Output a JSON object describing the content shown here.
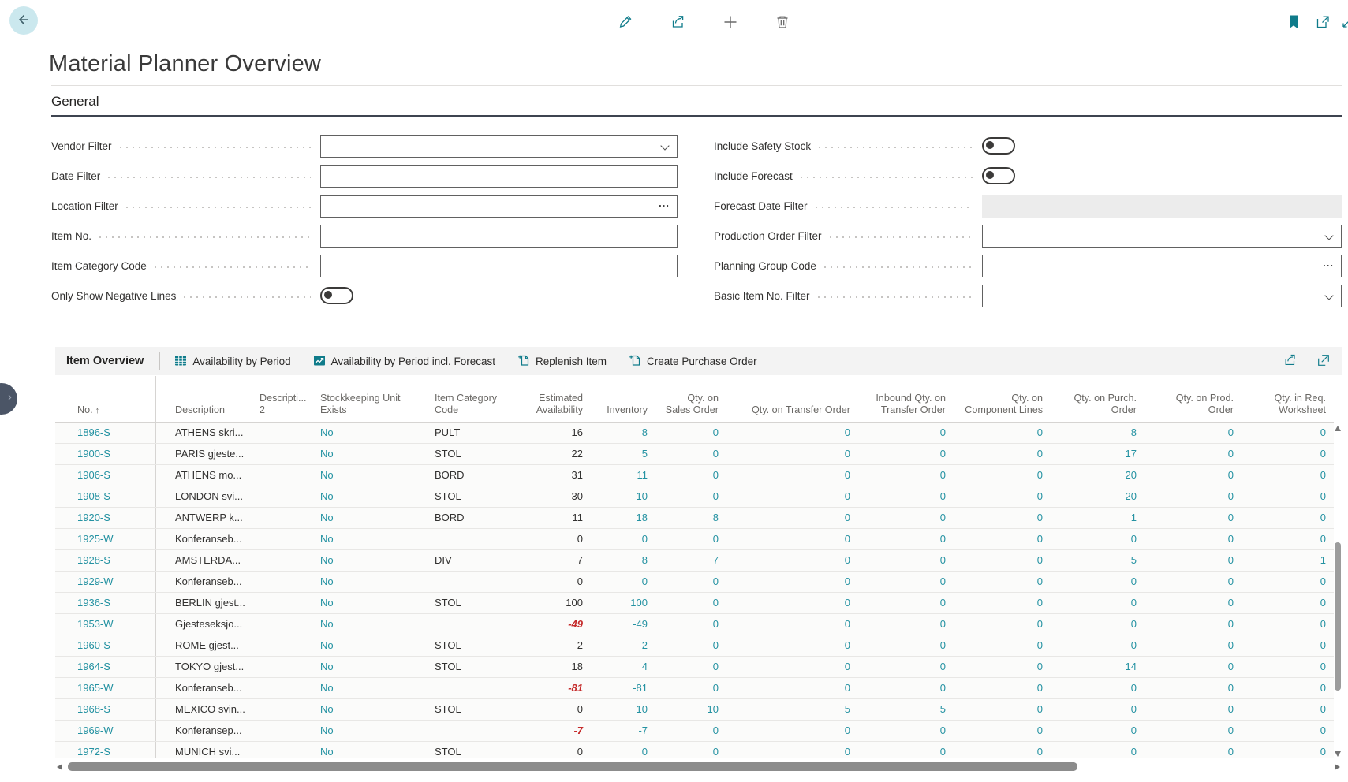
{
  "app": {
    "title": "Material Planner Overview",
    "top_actions": {
      "edit": "Edit",
      "share": "Share",
      "new": "New",
      "delete": "Delete"
    },
    "window_actions": {
      "bookmark": "Bookmark",
      "popout": "Open in new window",
      "resize": "Resize window"
    }
  },
  "colors": {
    "accent_teal": "#0f7b8a",
    "link_teal": "#2492a2",
    "negative_red": "#c52a2a",
    "toolbar_gray": "#f3f3f3"
  },
  "general": {
    "heading": "General",
    "left_fields": [
      {
        "label": "Vendor Filter",
        "control": "combo",
        "value": ""
      },
      {
        "label": "Date Filter",
        "control": "text",
        "value": ""
      },
      {
        "label": "Location Filter",
        "control": "assist",
        "value": "",
        "assist_glyph": "..."
      },
      {
        "label": "Item No.",
        "control": "text",
        "value": ""
      },
      {
        "label": "Item Category Code",
        "control": "text",
        "value": ""
      },
      {
        "label": "Only Show Negative Lines",
        "control": "toggle",
        "state": "off"
      }
    ],
    "right_fields": [
      {
        "label": "Include Safety Stock",
        "control": "toggle",
        "state": "off"
      },
      {
        "label": "Include Forecast",
        "control": "toggle",
        "state": "off"
      },
      {
        "label": "Forecast Date Filter",
        "control": "disabled",
        "value": ""
      },
      {
        "label": "Production Order Filter",
        "control": "combo",
        "value": ""
      },
      {
        "label": "Planning Group Code",
        "control": "assist",
        "value": "",
        "assist_glyph": "..."
      },
      {
        "label": "Basic Item No. Filter",
        "control": "combo",
        "value": ""
      }
    ]
  },
  "grid": {
    "title": "Item Overview",
    "actions": [
      {
        "label": "Availability by Period",
        "icon": "calendar-grid-icon"
      },
      {
        "label": "Availability by Period incl. Forecast",
        "icon": "chart-forecast-icon"
      },
      {
        "label": "Replenish Item",
        "icon": "new-document-icon"
      },
      {
        "label": "Create Purchase Order",
        "icon": "new-document-icon"
      }
    ],
    "columns": [
      {
        "name": "no",
        "lines": [
          "No."
        ],
        "align": "left",
        "cell": "link",
        "sort": "asc"
      },
      {
        "name": "description",
        "lines": [
          "Description"
        ],
        "align": "left",
        "cell": "plain"
      },
      {
        "name": "description-2",
        "lines": [
          "Descripti...",
          "2"
        ],
        "align": "left",
        "cell": "plain"
      },
      {
        "name": "stockkeeping-unit-exists",
        "lines": [
          "Stockkeeping Unit",
          "Exists"
        ],
        "align": "left",
        "cell": "link"
      },
      {
        "name": "item-category-code",
        "lines": [
          "Item Category",
          "Code"
        ],
        "align": "left",
        "cell": "plain"
      },
      {
        "name": "estimated-availability",
        "lines": [
          "Estimated",
          "Availability"
        ],
        "align": "right",
        "cell": "avail"
      },
      {
        "name": "inventory",
        "lines": [
          "Inventory"
        ],
        "align": "right",
        "cell": "link"
      },
      {
        "name": "qty-on-sales-order",
        "lines": [
          "Qty. on",
          "Sales Order"
        ],
        "align": "right",
        "cell": "link"
      },
      {
        "name": "qty-on-transfer-order",
        "lines": [
          "Qty. on Transfer Order"
        ],
        "align": "right",
        "cell": "link"
      },
      {
        "name": "inbound-qty-on-transfer-order",
        "lines": [
          "Inbound Qty. on",
          "Transfer Order"
        ],
        "align": "right",
        "cell": "link"
      },
      {
        "name": "qty-on-component-lines",
        "lines": [
          "Qty. on",
          "Component Lines"
        ],
        "align": "right",
        "cell": "link"
      },
      {
        "name": "qty-on-purch-order",
        "lines": [
          "Qty. on Purch.",
          "Order"
        ],
        "align": "right",
        "cell": "link"
      },
      {
        "name": "qty-on-prod-order",
        "lines": [
          "Qty. on Prod.",
          "Order"
        ],
        "align": "right",
        "cell": "link"
      },
      {
        "name": "qty-in-req-worksheet",
        "lines": [
          "Qty. in Req.",
          "Worksheet"
        ],
        "align": "right",
        "cell": "link"
      }
    ],
    "rows": [
      [
        "1896-S",
        "ATHENS skri...",
        "",
        "No",
        "PULT",
        "16",
        "8",
        "0",
        "0",
        "0",
        "0",
        "8",
        "0",
        "0"
      ],
      [
        "1900-S",
        "PARIS gjeste...",
        "",
        "No",
        "STOL",
        "22",
        "5",
        "0",
        "0",
        "0",
        "0",
        "17",
        "0",
        "0"
      ],
      [
        "1906-S",
        "ATHENS mo...",
        "",
        "No",
        "BORD",
        "31",
        "11",
        "0",
        "0",
        "0",
        "0",
        "20",
        "0",
        "0"
      ],
      [
        "1908-S",
        "LONDON svi...",
        "",
        "No",
        "STOL",
        "30",
        "10",
        "0",
        "0",
        "0",
        "0",
        "20",
        "0",
        "0"
      ],
      [
        "1920-S",
        "ANTWERP k...",
        "",
        "No",
        "BORD",
        "11",
        "18",
        "8",
        "0",
        "0",
        "0",
        "1",
        "0",
        "0"
      ],
      [
        "1925-W",
        "Konferanseb...",
        "",
        "No",
        "",
        "0",
        "0",
        "0",
        "0",
        "0",
        "0",
        "0",
        "0",
        "0"
      ],
      [
        "1928-S",
        "AMSTERDA...",
        "",
        "No",
        "DIV",
        "7",
        "8",
        "7",
        "0",
        "0",
        "0",
        "5",
        "0",
        "1"
      ],
      [
        "1929-W",
        "Konferanseb...",
        "",
        "No",
        "",
        "0",
        "0",
        "0",
        "0",
        "0",
        "0",
        "0",
        "0",
        "0"
      ],
      [
        "1936-S",
        "BERLIN gjest...",
        "",
        "No",
        "STOL",
        "100",
        "100",
        "0",
        "0",
        "0",
        "0",
        "0",
        "0",
        "0"
      ],
      [
        "1953-W",
        "Gjesteseksjo...",
        "",
        "No",
        "",
        "-49",
        "-49",
        "0",
        "0",
        "0",
        "0",
        "0",
        "0",
        "0"
      ],
      [
        "1960-S",
        "ROME gjest...",
        "",
        "No",
        "STOL",
        "2",
        "2",
        "0",
        "0",
        "0",
        "0",
        "0",
        "0",
        "0"
      ],
      [
        "1964-S",
        "TOKYO gjest...",
        "",
        "No",
        "STOL",
        "18",
        "4",
        "0",
        "0",
        "0",
        "0",
        "14",
        "0",
        "0"
      ],
      [
        "1965-W",
        "Konferanseb...",
        "",
        "No",
        "",
        "-81",
        "-81",
        "0",
        "0",
        "0",
        "0",
        "0",
        "0",
        "0"
      ],
      [
        "1968-S",
        "MEXICO svin...",
        "",
        "No",
        "STOL",
        "0",
        "10",
        "10",
        "5",
        "5",
        "0",
        "0",
        "0",
        "0"
      ],
      [
        "1969-W",
        "Konferansep...",
        "",
        "No",
        "",
        "-7",
        "-7",
        "0",
        "0",
        "0",
        "0",
        "0",
        "0",
        "0"
      ],
      [
        "1972-S",
        "MUNICH svi...",
        "",
        "No",
        "STOL",
        "0",
        "0",
        "0",
        "0",
        "0",
        "0",
        "0",
        "0",
        "0"
      ]
    ]
  }
}
